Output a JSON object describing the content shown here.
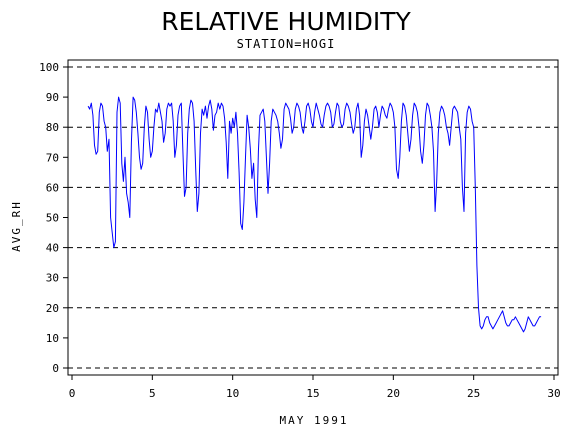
{
  "chart_data": {
    "type": "line",
    "title": "RELATIVE HUMIDITY",
    "subtitle": "STATION=HOGI",
    "xlabel": "MAY 1991",
    "ylabel": "AVG_RH",
    "xlim": [
      0,
      30
    ],
    "ylim": [
      0,
      100
    ],
    "x_ticks": [
      0,
      5,
      10,
      15,
      20,
      25,
      30
    ],
    "y_ticks": [
      0,
      10,
      20,
      30,
      40,
      50,
      60,
      70,
      80,
      90,
      100
    ],
    "reference_lines": [
      0,
      20,
      40,
      60,
      80,
      100
    ],
    "grid": false,
    "series": [
      {
        "color": "#0000ff",
        "points": [
          [
            1.0,
            87
          ],
          [
            1.1,
            86
          ],
          [
            1.2,
            88
          ],
          [
            1.3,
            84
          ],
          [
            1.4,
            74
          ],
          [
            1.5,
            71
          ],
          [
            1.6,
            72
          ],
          [
            1.7,
            85
          ],
          [
            1.8,
            88
          ],
          [
            1.9,
            87
          ],
          [
            2.0,
            82
          ],
          [
            2.1,
            80
          ],
          [
            2.2,
            72
          ],
          [
            2.3,
            76
          ],
          [
            2.4,
            50
          ],
          [
            2.5,
            45
          ],
          [
            2.6,
            40
          ],
          [
            2.7,
            42
          ],
          [
            2.8,
            85
          ],
          [
            2.9,
            90
          ],
          [
            3.0,
            88
          ],
          [
            3.1,
            68
          ],
          [
            3.2,
            62
          ],
          [
            3.3,
            70
          ],
          [
            3.4,
            58
          ],
          [
            3.5,
            55
          ],
          [
            3.6,
            50
          ],
          [
            3.7,
            75
          ],
          [
            3.8,
            90
          ],
          [
            3.9,
            89
          ],
          [
            4.0,
            85
          ],
          [
            4.1,
            78
          ],
          [
            4.2,
            70
          ],
          [
            4.3,
            66
          ],
          [
            4.4,
            68
          ],
          [
            4.5,
            80
          ],
          [
            4.6,
            87
          ],
          [
            4.7,
            85
          ],
          [
            4.8,
            76
          ],
          [
            4.9,
            70
          ],
          [
            5.0,
            72
          ],
          [
            5.1,
            80
          ],
          [
            5.2,
            86
          ],
          [
            5.3,
            85
          ],
          [
            5.4,
            88
          ],
          [
            5.5,
            85
          ],
          [
            5.6,
            82
          ],
          [
            5.7,
            75
          ],
          [
            5.8,
            78
          ],
          [
            5.9,
            86
          ],
          [
            6.0,
            88
          ],
          [
            6.1,
            87
          ],
          [
            6.2,
            88
          ],
          [
            6.3,
            82
          ],
          [
            6.4,
            70
          ],
          [
            6.5,
            74
          ],
          [
            6.6,
            84
          ],
          [
            6.7,
            87
          ],
          [
            6.8,
            88
          ],
          [
            6.9,
            72
          ],
          [
            7.0,
            57
          ],
          [
            7.1,
            60
          ],
          [
            7.2,
            78
          ],
          [
            7.3,
            86
          ],
          [
            7.4,
            89
          ],
          [
            7.5,
            88
          ],
          [
            7.6,
            82
          ],
          [
            7.7,
            66
          ],
          [
            7.8,
            52
          ],
          [
            7.9,
            58
          ],
          [
            8.0,
            78
          ],
          [
            8.1,
            86
          ],
          [
            8.2,
            84
          ],
          [
            8.3,
            87
          ],
          [
            8.4,
            83
          ],
          [
            8.5,
            87
          ],
          [
            8.6,
            89
          ],
          [
            8.7,
            86
          ],
          [
            8.8,
            79
          ],
          [
            8.9,
            84
          ],
          [
            9.0,
            85
          ],
          [
            9.1,
            88
          ],
          [
            9.2,
            86
          ],
          [
            9.3,
            88
          ],
          [
            9.4,
            87
          ],
          [
            9.5,
            83
          ],
          [
            9.6,
            75
          ],
          [
            9.7,
            63
          ],
          [
            9.8,
            82
          ],
          [
            9.9,
            78
          ],
          [
            10.0,
            83
          ],
          [
            10.1,
            80
          ],
          [
            10.2,
            85
          ],
          [
            10.3,
            78
          ],
          [
            10.4,
            65
          ],
          [
            10.5,
            48
          ],
          [
            10.6,
            46
          ],
          [
            10.7,
            55
          ],
          [
            10.8,
            70
          ],
          [
            10.9,
            84
          ],
          [
            11.0,
            80
          ],
          [
            11.1,
            73
          ],
          [
            11.2,
            63
          ],
          [
            11.3,
            68
          ],
          [
            11.4,
            56
          ],
          [
            11.5,
            50
          ],
          [
            11.6,
            72
          ],
          [
            11.7,
            84
          ],
          [
            11.8,
            85
          ],
          [
            11.9,
            86
          ],
          [
            12.0,
            82
          ],
          [
            12.1,
            70
          ],
          [
            12.2,
            58
          ],
          [
            12.3,
            68
          ],
          [
            12.4,
            82
          ],
          [
            12.5,
            86
          ],
          [
            12.6,
            85
          ],
          [
            12.7,
            84
          ],
          [
            12.8,
            82
          ],
          [
            12.9,
            78
          ],
          [
            13.0,
            73
          ],
          [
            13.1,
            76
          ],
          [
            13.2,
            86
          ],
          [
            13.3,
            88
          ],
          [
            13.4,
            87
          ],
          [
            13.5,
            86
          ],
          [
            13.6,
            83
          ],
          [
            13.7,
            78
          ],
          [
            13.8,
            80
          ],
          [
            13.9,
            86
          ],
          [
            14.0,
            88
          ],
          [
            14.1,
            87
          ],
          [
            14.2,
            85
          ],
          [
            14.3,
            80
          ],
          [
            14.4,
            78
          ],
          [
            14.5,
            82
          ],
          [
            14.6,
            87
          ],
          [
            14.7,
            88
          ],
          [
            14.8,
            86
          ],
          [
            14.9,
            82
          ],
          [
            15.0,
            80
          ],
          [
            15.1,
            85
          ],
          [
            15.2,
            88
          ],
          [
            15.3,
            86
          ],
          [
            15.4,
            84
          ],
          [
            15.5,
            81
          ],
          [
            15.6,
            80
          ],
          [
            15.7,
            84
          ],
          [
            15.8,
            87
          ],
          [
            15.9,
            88
          ],
          [
            16.0,
            87
          ],
          [
            16.1,
            85
          ],
          [
            16.2,
            80
          ],
          [
            16.3,
            81
          ],
          [
            16.4,
            85
          ],
          [
            16.5,
            88
          ],
          [
            16.6,
            87
          ],
          [
            16.7,
            82
          ],
          [
            16.8,
            80
          ],
          [
            16.9,
            81
          ],
          [
            17.0,
            86
          ],
          [
            17.1,
            88
          ],
          [
            17.2,
            87
          ],
          [
            17.3,
            85
          ],
          [
            17.4,
            81
          ],
          [
            17.5,
            78
          ],
          [
            17.6,
            80
          ],
          [
            17.7,
            86
          ],
          [
            17.8,
            88
          ],
          [
            17.9,
            84
          ],
          [
            18.0,
            70
          ],
          [
            18.1,
            74
          ],
          [
            18.2,
            82
          ],
          [
            18.3,
            86
          ],
          [
            18.4,
            84
          ],
          [
            18.5,
            80
          ],
          [
            18.6,
            76
          ],
          [
            18.7,
            80
          ],
          [
            18.8,
            86
          ],
          [
            18.9,
            87
          ],
          [
            19.0,
            85
          ],
          [
            19.1,
            80
          ],
          [
            19.2,
            84
          ],
          [
            19.3,
            87
          ],
          [
            19.4,
            86
          ],
          [
            19.5,
            84
          ],
          [
            19.6,
            83
          ],
          [
            19.7,
            86
          ],
          [
            19.8,
            88
          ],
          [
            19.9,
            87
          ],
          [
            20.0,
            85
          ],
          [
            20.1,
            80
          ],
          [
            20.2,
            66
          ],
          [
            20.3,
            63
          ],
          [
            20.4,
            70
          ],
          [
            20.5,
            82
          ],
          [
            20.6,
            88
          ],
          [
            20.7,
            87
          ],
          [
            20.8,
            84
          ],
          [
            20.9,
            78
          ],
          [
            21.0,
            72
          ],
          [
            21.1,
            76
          ],
          [
            21.2,
            84
          ],
          [
            21.3,
            88
          ],
          [
            21.4,
            87
          ],
          [
            21.5,
            85
          ],
          [
            21.6,
            80
          ],
          [
            21.7,
            72
          ],
          [
            21.8,
            68
          ],
          [
            21.9,
            74
          ],
          [
            22.0,
            84
          ],
          [
            22.1,
            88
          ],
          [
            22.2,
            87
          ],
          [
            22.3,
            84
          ],
          [
            22.4,
            80
          ],
          [
            22.5,
            72
          ],
          [
            22.6,
            52
          ],
          [
            22.7,
            62
          ],
          [
            22.8,
            78
          ],
          [
            22.9,
            85
          ],
          [
            23.0,
            87
          ],
          [
            23.1,
            86
          ],
          [
            23.2,
            84
          ],
          [
            23.3,
            80
          ],
          [
            23.4,
            78
          ],
          [
            23.5,
            74
          ],
          [
            23.6,
            80
          ],
          [
            23.7,
            86
          ],
          [
            23.8,
            87
          ],
          [
            23.9,
            86
          ],
          [
            24.0,
            85
          ],
          [
            24.1,
            80
          ],
          [
            24.2,
            76
          ],
          [
            24.3,
            60
          ],
          [
            24.4,
            52
          ],
          [
            24.5,
            78
          ],
          [
            24.6,
            85
          ],
          [
            24.7,
            87
          ],
          [
            24.8,
            86
          ],
          [
            24.9,
            82
          ],
          [
            25.0,
            80
          ],
          [
            25.1,
            60
          ],
          [
            25.2,
            34
          ],
          [
            25.3,
            20
          ],
          [
            25.4,
            14
          ],
          [
            25.5,
            13
          ],
          [
            25.6,
            14
          ],
          [
            25.7,
            16
          ],
          [
            25.8,
            17
          ],
          [
            25.9,
            17
          ],
          [
            26.0,
            15
          ],
          [
            26.1,
            14
          ],
          [
            26.2,
            13
          ],
          [
            26.3,
            14
          ],
          [
            26.4,
            15
          ],
          [
            26.5,
            16
          ],
          [
            26.6,
            17
          ],
          [
            26.7,
            18
          ],
          [
            26.8,
            19
          ],
          [
            26.9,
            17
          ],
          [
            27.0,
            15
          ],
          [
            27.1,
            14
          ],
          [
            27.2,
            14
          ],
          [
            27.3,
            15
          ],
          [
            27.4,
            16
          ],
          [
            27.5,
            16
          ],
          [
            27.6,
            17
          ],
          [
            27.7,
            16
          ],
          [
            27.8,
            15
          ],
          [
            27.9,
            14
          ],
          [
            28.0,
            13
          ],
          [
            28.1,
            12
          ],
          [
            28.2,
            13
          ],
          [
            28.3,
            15
          ],
          [
            28.4,
            17
          ],
          [
            28.5,
            16
          ],
          [
            28.6,
            15
          ],
          [
            28.7,
            14
          ],
          [
            28.8,
            14
          ],
          [
            28.9,
            15
          ],
          [
            29.0,
            16
          ],
          [
            29.1,
            17
          ],
          [
            29.2,
            17
          ]
        ]
      }
    ]
  }
}
